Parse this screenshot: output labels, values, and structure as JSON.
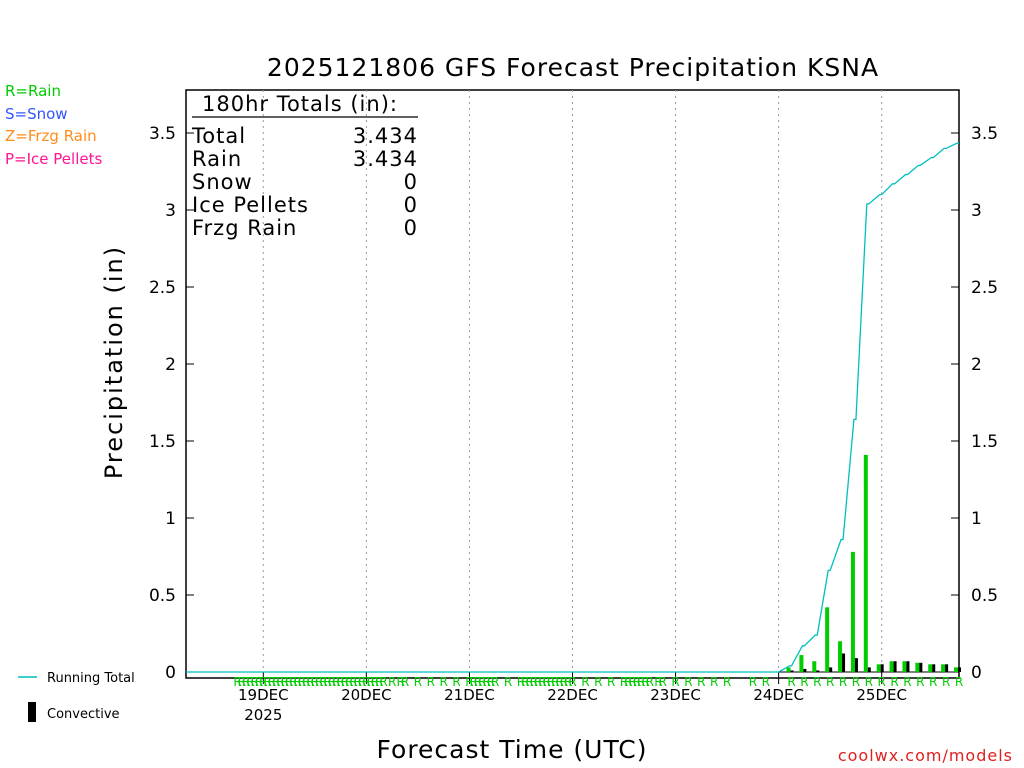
{
  "colors": {
    "rain": "#00cc00",
    "snow": "#3355ff",
    "frzg_rain": "#ff8c1a",
    "ice_pellets": "#ff1493",
    "running_total": "#00bfbf",
    "convective": "#000000"
  },
  "legend_left": {
    "rain": "R=Rain",
    "snow": "S=Snow",
    "frzg": "Z=Frzg Rain",
    "ice": "P=Ice Pellets"
  },
  "legend_bottom": {
    "running_total": "Running Total",
    "convective": "Convective"
  },
  "totals_box": {
    "header": "180hr Totals (in):",
    "rows": [
      {
        "label": "Total",
        "value": "3.434"
      },
      {
        "label": "Rain",
        "value": "3.434"
      },
      {
        "label": "Snow",
        "value": "0"
      },
      {
        "label": "Ice Pellets",
        "value": "0"
      },
      {
        "label": "Frzg Rain",
        "value": "0"
      }
    ]
  },
  "footer": {
    "source": "coolwx.com/models"
  },
  "chart_data": {
    "type": "bar",
    "title": "2025121806 GFS Forecast Precipitation KSNA",
    "xlabel": "Forecast Time (UTC)",
    "ylabel": "Precipitation (in)",
    "ylim": [
      0,
      3.75
    ],
    "y_ticks": [
      "0",
      "0.5",
      "1",
      "1.5",
      "2",
      "2.5",
      "3",
      "3.5"
    ],
    "x_range_hours": [
      0,
      180
    ],
    "x_ticks": [
      {
        "hour": 18,
        "label": "19DEC",
        "sub": "2025"
      },
      {
        "hour": 42,
        "label": "20DEC"
      },
      {
        "hour": 66,
        "label": "21DEC"
      },
      {
        "hour": 90,
        "label": "22DEC"
      },
      {
        "hour": 114,
        "label": "23DEC"
      },
      {
        "hour": 138,
        "label": "24DEC"
      },
      {
        "hour": 162,
        "label": "25DEC"
      }
    ],
    "grid": "vertical dotted at day boundaries",
    "series": [
      {
        "name": "Rain",
        "kind": "bar",
        "x": [
          141,
          144,
          147,
          150,
          153,
          156,
          159,
          162,
          165,
          168,
          171,
          174,
          177,
          180
        ],
        "values": [
          0.03,
          0.11,
          0.07,
          0.42,
          0.2,
          0.78,
          1.41,
          0.05,
          0.07,
          0.07,
          0.06,
          0.05,
          0.05,
          0.03
        ]
      },
      {
        "name": "Convective",
        "kind": "bar",
        "x": [
          141,
          144,
          147,
          150,
          153,
          156,
          159,
          162,
          165,
          168,
          171,
          174,
          177,
          180
        ],
        "values": [
          0.01,
          0.02,
          0.01,
          0.03,
          0.12,
          0.09,
          0.03,
          0.05,
          0.07,
          0.07,
          0.06,
          0.05,
          0.05,
          0.03
        ]
      },
      {
        "name": "Running Total",
        "kind": "step-line",
        "x": [
          0,
          138,
          141,
          144,
          147,
          150,
          153,
          156,
          159,
          162,
          165,
          168,
          171,
          174,
          177,
          180
        ],
        "values": [
          0,
          0,
          0.04,
          0.17,
          0.24,
          0.66,
          0.86,
          1.64,
          3.04,
          3.1,
          3.17,
          3.23,
          3.29,
          3.34,
          3.4,
          3.434
        ]
      }
    ],
    "ptype_markers": {
      "symbol": "R",
      "hours": [
        12,
        13,
        14,
        15,
        16,
        17,
        18,
        19,
        20,
        21,
        22,
        23,
        24,
        25,
        26,
        27,
        28,
        29,
        30,
        31,
        32,
        33,
        34,
        35,
        36,
        37,
        38,
        39,
        40,
        41,
        42,
        43,
        44,
        45,
        46,
        48,
        50,
        51,
        54,
        57,
        60,
        63,
        66,
        67,
        68,
        69,
        70,
        71,
        72,
        75,
        78,
        79,
        80,
        81,
        82,
        83,
        84,
        85,
        86,
        87,
        88,
        89,
        90,
        93,
        96,
        99,
        102,
        103,
        104,
        105,
        106,
        107,
        108,
        110,
        111,
        114,
        117,
        120,
        123,
        126,
        132,
        135,
        141,
        144,
        147,
        150,
        153,
        156,
        159,
        162,
        165,
        168,
        171,
        174,
        177,
        180
      ]
    }
  }
}
